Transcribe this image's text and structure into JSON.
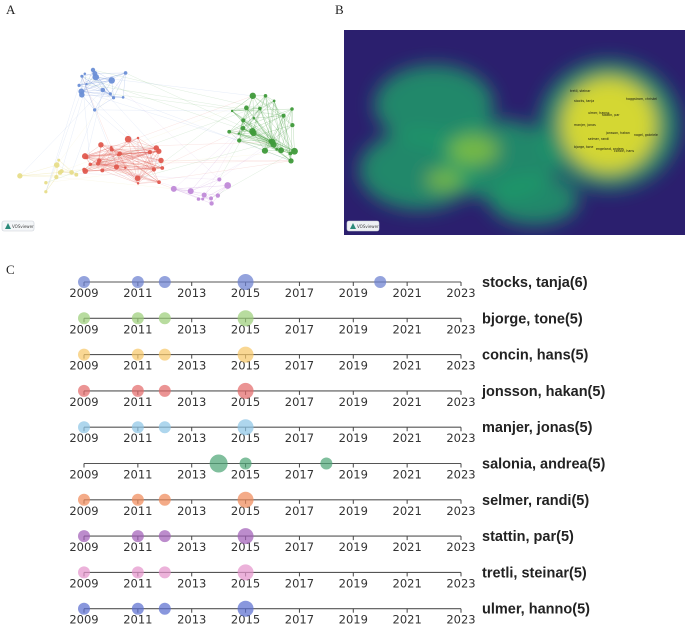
{
  "panels": {
    "a_letter": "A",
    "b_letter": "B",
    "c_letter": "C",
    "vos_badge": "VOSviewer"
  },
  "colors": {
    "blue": "#6c8fd6",
    "red": "#e05a4f",
    "green": "#3f9a3a",
    "yellow": "#e7dd8a",
    "purple": "#c08ad8",
    "heat_bg": "#2b1f6e",
    "heat_mid": "#1e9a6a",
    "heat_hot": "#f5e52a"
  },
  "heatmap_labels": [
    "stocks, tanja",
    "ulmer, hanno",
    "manjer, jonas",
    "stattin, par",
    "jonsson, hakan",
    "selmer, randi",
    "bjorge, tone",
    "engeland, anders",
    "concin, hans",
    "tretli, steinar",
    "haggstrom, christel",
    "nagel, gabriele"
  ],
  "chart_data": {
    "type": "scatter",
    "subtype": "timeline-bubble",
    "xticks": [
      "2009",
      "2011",
      "2013",
      "2015",
      "2017",
      "2019",
      "2021",
      "2023"
    ],
    "xlim": [
      2009,
      2023
    ],
    "series": [
      {
        "name": "stocks, tanja(6)",
        "color": "#6b7fd0",
        "points": [
          {
            "x": 2009,
            "size": 1
          },
          {
            "x": 2011,
            "size": 1
          },
          {
            "x": 2012,
            "size": 1
          },
          {
            "x": 2015,
            "size": 2
          },
          {
            "x": 2020,
            "size": 1
          }
        ]
      },
      {
        "name": "bjorge, tone(5)",
        "color": "#9ccf7a",
        "points": [
          {
            "x": 2009,
            "size": 1
          },
          {
            "x": 2011,
            "size": 1
          },
          {
            "x": 2012,
            "size": 1
          },
          {
            "x": 2015,
            "size": 2
          }
        ]
      },
      {
        "name": "concin, hans(5)",
        "color": "#f6c86a",
        "points": [
          {
            "x": 2009,
            "size": 1
          },
          {
            "x": 2011,
            "size": 1
          },
          {
            "x": 2012,
            "size": 1
          },
          {
            "x": 2015,
            "size": 2
          }
        ]
      },
      {
        "name": "jonsson, hakan(5)",
        "color": "#e36b6b",
        "points": [
          {
            "x": 2009,
            "size": 1
          },
          {
            "x": 2011,
            "size": 1
          },
          {
            "x": 2012,
            "size": 1
          },
          {
            "x": 2015,
            "size": 2
          }
        ]
      },
      {
        "name": "manjer, jonas(5)",
        "color": "#8fc6e6",
        "points": [
          {
            "x": 2009,
            "size": 1
          },
          {
            "x": 2011,
            "size": 1
          },
          {
            "x": 2012,
            "size": 1
          },
          {
            "x": 2015,
            "size": 2
          }
        ]
      },
      {
        "name": "salonia, andrea(5)",
        "color": "#4fa677",
        "points": [
          {
            "x": 2014,
            "size": 3
          },
          {
            "x": 2015,
            "size": 1
          },
          {
            "x": 2018,
            "size": 1
          }
        ]
      },
      {
        "name": "selmer, randi(5)",
        "color": "#f08a5a",
        "points": [
          {
            "x": 2009,
            "size": 1
          },
          {
            "x": 2011,
            "size": 1
          },
          {
            "x": 2012,
            "size": 1
          },
          {
            "x": 2015,
            "size": 2
          }
        ]
      },
      {
        "name": "stattin, par(5)",
        "color": "#a25fb8",
        "points": [
          {
            "x": 2009,
            "size": 1
          },
          {
            "x": 2011,
            "size": 1
          },
          {
            "x": 2012,
            "size": 1
          },
          {
            "x": 2015,
            "size": 2
          }
        ]
      },
      {
        "name": "tretli, steinar(5)",
        "color": "#e594cc",
        "points": [
          {
            "x": 2009,
            "size": 1
          },
          {
            "x": 2011,
            "size": 1
          },
          {
            "x": 2012,
            "size": 1
          },
          {
            "x": 2015,
            "size": 2
          }
        ]
      },
      {
        "name": "ulmer, hanno(5)",
        "color": "#5b6fd0",
        "points": [
          {
            "x": 2009,
            "size": 1
          },
          {
            "x": 2011,
            "size": 1
          },
          {
            "x": 2012,
            "size": 1
          },
          {
            "x": 2015,
            "size": 2
          }
        ]
      }
    ]
  }
}
